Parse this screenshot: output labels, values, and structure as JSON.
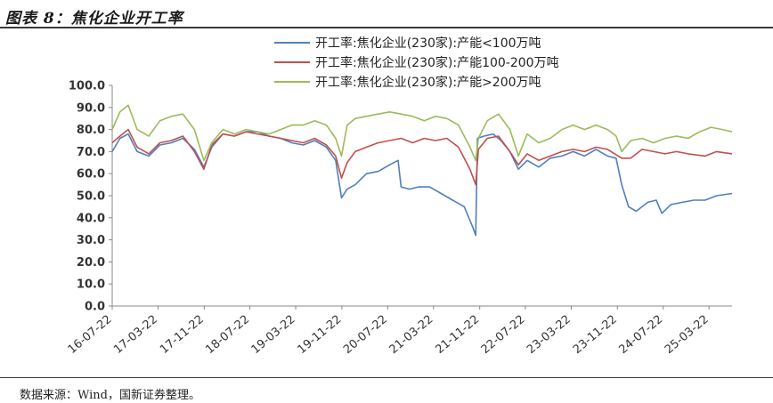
{
  "figure": {
    "title": "图表 8：焦化企业开工率",
    "source": "数据来源：Wind，国新证券整理。"
  },
  "chart_data": {
    "type": "line",
    "ylim": [
      0,
      100
    ],
    "y_ticks": [
      "100.0",
      "90.0",
      "80.0",
      "70.0",
      "60.0",
      "50.0",
      "40.0",
      "30.0",
      "20.0",
      "10.0",
      "0.0"
    ],
    "x_ticks": [
      "16-07-22",
      "17-03-22",
      "17-11-22",
      "18-07-22",
      "19-03-22",
      "19-11-22",
      "20-07-22",
      "21-03-22",
      "21-11-22",
      "22-07-22",
      "23-03-22",
      "23-11-22",
      "24-07-22",
      "25-03-22"
    ],
    "x_range": [
      "2016-07-22",
      "2025-07-22"
    ],
    "legend_position": "top-center",
    "grid": false,
    "series": [
      {
        "name": "开工率:焦化企业(230家):产能<100万吨",
        "color": "#4F7FC0",
        "points": [
          [
            "2016-07-22",
            70
          ],
          [
            "2016-09-01",
            76
          ],
          [
            "2016-10-15",
            78
          ],
          [
            "2016-12-01",
            70
          ],
          [
            "2017-02-01",
            68
          ],
          [
            "2017-04-01",
            73
          ],
          [
            "2017-06-01",
            74
          ],
          [
            "2017-08-01",
            76
          ],
          [
            "2017-10-01",
            71
          ],
          [
            "2017-11-20",
            63
          ],
          [
            "2018-01-01",
            72
          ],
          [
            "2018-03-01",
            78
          ],
          [
            "2018-05-01",
            77
          ],
          [
            "2018-07-01",
            79
          ],
          [
            "2018-09-01",
            79
          ],
          [
            "2018-11-01",
            77
          ],
          [
            "2019-01-01",
            76
          ],
          [
            "2019-03-01",
            74
          ],
          [
            "2019-05-01",
            73
          ],
          [
            "2019-07-01",
            75
          ],
          [
            "2019-09-01",
            72
          ],
          [
            "2019-10-20",
            66
          ],
          [
            "2019-11-20",
            49
          ],
          [
            "2019-12-20",
            53
          ],
          [
            "2020-02-01",
            55
          ],
          [
            "2020-04-01",
            60
          ],
          [
            "2020-06-01",
            61
          ],
          [
            "2020-08-01",
            64
          ],
          [
            "2020-09-15",
            66
          ],
          [
            "2020-10-01",
            54
          ],
          [
            "2020-11-15",
            53
          ],
          [
            "2021-01-01",
            54
          ],
          [
            "2021-03-01",
            54
          ],
          [
            "2021-05-01",
            51
          ],
          [
            "2021-07-01",
            48
          ],
          [
            "2021-09-01",
            45
          ],
          [
            "2021-10-15",
            36
          ],
          [
            "2021-11-01",
            32
          ],
          [
            "2021-11-10",
            76
          ],
          [
            "2021-12-15",
            77
          ],
          [
            "2022-02-01",
            78
          ],
          [
            "2022-03-15",
            75
          ],
          [
            "2022-05-01",
            70
          ],
          [
            "2022-06-15",
            62
          ],
          [
            "2022-08-01",
            66
          ],
          [
            "2022-10-01",
            63
          ],
          [
            "2022-12-01",
            67
          ],
          [
            "2023-02-01",
            68
          ],
          [
            "2023-04-01",
            70
          ],
          [
            "2023-06-01",
            68
          ],
          [
            "2023-08-01",
            71
          ],
          [
            "2023-10-01",
            68
          ],
          [
            "2023-11-15",
            67
          ],
          [
            "2023-12-15",
            55
          ],
          [
            "2024-01-20",
            45
          ],
          [
            "2024-03-01",
            43
          ],
          [
            "2024-05-01",
            47
          ],
          [
            "2024-06-15",
            48
          ],
          [
            "2024-07-15",
            42
          ],
          [
            "2024-09-01",
            46
          ],
          [
            "2024-11-01",
            47
          ],
          [
            "2025-01-01",
            48
          ],
          [
            "2025-03-01",
            48
          ],
          [
            "2025-05-01",
            50
          ],
          [
            "2025-07-22",
            51
          ]
        ]
      },
      {
        "name": "开工率:焦化企业(230家):产能100-200万吨",
        "color": "#C0504D",
        "points": [
          [
            "2016-07-22",
            74
          ],
          [
            "2016-09-01",
            77
          ],
          [
            "2016-10-15",
            80
          ],
          [
            "2016-12-01",
            72
          ],
          [
            "2017-02-01",
            69
          ],
          [
            "2017-04-01",
            74
          ],
          [
            "2017-06-01",
            75
          ],
          [
            "2017-08-01",
            77
          ],
          [
            "2017-10-01",
            70
          ],
          [
            "2017-11-20",
            62
          ],
          [
            "2018-01-01",
            73
          ],
          [
            "2018-03-01",
            78
          ],
          [
            "2018-05-01",
            77
          ],
          [
            "2018-07-01",
            79
          ],
          [
            "2018-09-01",
            78
          ],
          [
            "2018-11-01",
            77
          ],
          [
            "2019-01-01",
            76
          ],
          [
            "2019-03-01",
            75
          ],
          [
            "2019-05-01",
            74
          ],
          [
            "2019-07-01",
            76
          ],
          [
            "2019-09-01",
            73
          ],
          [
            "2019-10-20",
            68
          ],
          [
            "2019-11-20",
            58
          ],
          [
            "2019-12-20",
            65
          ],
          [
            "2020-02-01",
            70
          ],
          [
            "2020-04-01",
            72
          ],
          [
            "2020-06-01",
            74
          ],
          [
            "2020-08-01",
            75
          ],
          [
            "2020-10-01",
            76
          ],
          [
            "2020-12-01",
            74
          ],
          [
            "2021-02-01",
            76
          ],
          [
            "2021-04-01",
            75
          ],
          [
            "2021-06-01",
            76
          ],
          [
            "2021-08-01",
            72
          ],
          [
            "2021-10-01",
            62
          ],
          [
            "2021-11-01",
            55
          ],
          [
            "2021-11-15",
            71
          ],
          [
            "2022-01-01",
            76
          ],
          [
            "2022-03-01",
            77
          ],
          [
            "2022-05-01",
            70
          ],
          [
            "2022-06-15",
            64
          ],
          [
            "2022-08-01",
            69
          ],
          [
            "2022-10-01",
            66
          ],
          [
            "2022-12-01",
            68
          ],
          [
            "2023-02-01",
            70
          ],
          [
            "2023-04-01",
            71
          ],
          [
            "2023-06-01",
            70
          ],
          [
            "2023-08-01",
            72
          ],
          [
            "2023-10-01",
            71
          ],
          [
            "2023-12-15",
            67
          ],
          [
            "2024-02-01",
            67
          ],
          [
            "2024-04-01",
            71
          ],
          [
            "2024-06-01",
            70
          ],
          [
            "2024-08-01",
            69
          ],
          [
            "2024-10-01",
            70
          ],
          [
            "2024-12-01",
            69
          ],
          [
            "2025-03-01",
            68
          ],
          [
            "2025-05-01",
            70
          ],
          [
            "2025-07-22",
            69
          ]
        ]
      },
      {
        "name": "开工率:焦化企业(230家):产能>200万吨",
        "color": "#9BBB59",
        "points": [
          [
            "2016-07-22",
            80
          ],
          [
            "2016-09-01",
            88
          ],
          [
            "2016-10-15",
            91
          ],
          [
            "2016-12-01",
            80
          ],
          [
            "2017-02-01",
            77
          ],
          [
            "2017-04-01",
            84
          ],
          [
            "2017-06-01",
            86
          ],
          [
            "2017-08-01",
            87
          ],
          [
            "2017-10-01",
            80
          ],
          [
            "2017-11-20",
            66
          ],
          [
            "2018-01-01",
            74
          ],
          [
            "2018-03-01",
            80
          ],
          [
            "2018-05-01",
            78
          ],
          [
            "2018-07-01",
            80
          ],
          [
            "2018-09-01",
            79
          ],
          [
            "2018-11-01",
            78
          ],
          [
            "2019-01-01",
            80
          ],
          [
            "2019-03-01",
            82
          ],
          [
            "2019-05-01",
            82
          ],
          [
            "2019-07-01",
            84
          ],
          [
            "2019-09-01",
            82
          ],
          [
            "2019-10-20",
            76
          ],
          [
            "2019-11-20",
            68
          ],
          [
            "2019-12-20",
            82
          ],
          [
            "2020-02-01",
            85
          ],
          [
            "2020-04-01",
            86
          ],
          [
            "2020-06-01",
            87
          ],
          [
            "2020-08-01",
            88
          ],
          [
            "2020-10-01",
            87
          ],
          [
            "2020-12-01",
            86
          ],
          [
            "2021-02-01",
            84
          ],
          [
            "2021-04-01",
            86
          ],
          [
            "2021-06-01",
            85
          ],
          [
            "2021-08-01",
            82
          ],
          [
            "2021-10-01",
            72
          ],
          [
            "2021-11-01",
            66
          ],
          [
            "2021-11-15",
            76
          ],
          [
            "2022-01-01",
            84
          ],
          [
            "2022-03-01",
            87
          ],
          [
            "2022-05-01",
            80
          ],
          [
            "2022-06-15",
            68
          ],
          [
            "2022-08-01",
            78
          ],
          [
            "2022-10-01",
            74
          ],
          [
            "2022-12-01",
            76
          ],
          [
            "2023-02-01",
            80
          ],
          [
            "2023-04-01",
            82
          ],
          [
            "2023-06-01",
            80
          ],
          [
            "2023-08-01",
            82
          ],
          [
            "2023-10-01",
            80
          ],
          [
            "2023-11-15",
            77
          ],
          [
            "2023-12-15",
            70
          ],
          [
            "2024-02-01",
            75
          ],
          [
            "2024-04-01",
            76
          ],
          [
            "2024-06-01",
            74
          ],
          [
            "2024-08-01",
            76
          ],
          [
            "2024-10-01",
            77
          ],
          [
            "2024-12-01",
            76
          ],
          [
            "2025-02-01",
            79
          ],
          [
            "2025-04-01",
            81
          ],
          [
            "2025-06-01",
            80
          ],
          [
            "2025-07-22",
            79
          ]
        ]
      }
    ]
  }
}
